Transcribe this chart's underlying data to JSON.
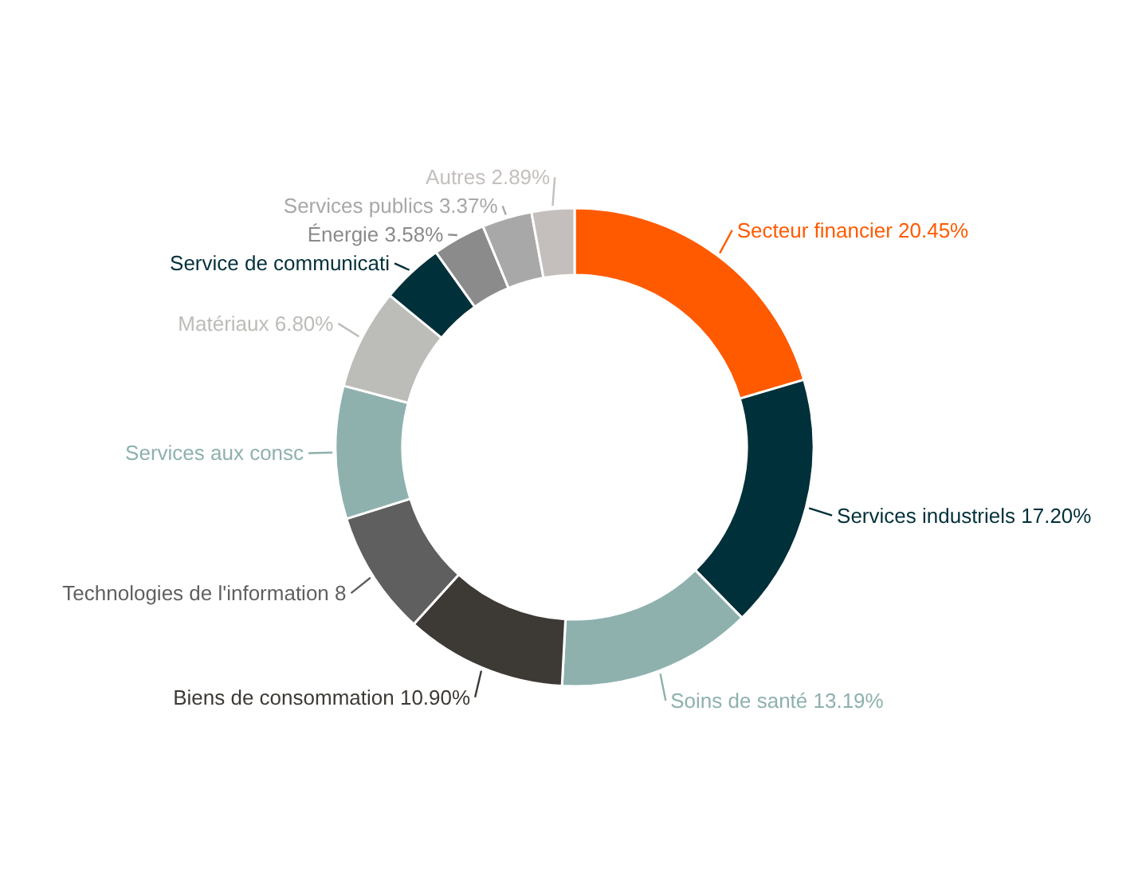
{
  "chart_data": {
    "type": "donut",
    "categories": [
      "Secteur financier",
      "Services industriels",
      "Soins de santé",
      "Biens de consommation",
      "Technologies de l'information 8",
      "Services aux consc",
      "Matériaux",
      "Service de communicati",
      "Énergie",
      "Services publics",
      "Autres"
    ],
    "values": [
      20.45,
      17.2,
      13.19,
      10.9,
      8.42,
      8.98,
      6.8,
      4.22,
      3.58,
      3.37,
      2.89
    ],
    "value_labels": [
      "20.45%",
      "17.20%",
      "13.19%",
      "10.90%",
      null,
      null,
      "6.80%",
      null,
      "3.58%",
      "3.37%",
      "2.89%"
    ],
    "colors": [
      "#ff5a00",
      "#00303a",
      "#8eb1ae",
      "#3d3935",
      "#5f5f5f",
      "#8eb1ae",
      "#bcbcb8",
      "#00303a",
      "#8b8b8b",
      "#a8a8a8",
      "#c4bfbd"
    ]
  }
}
